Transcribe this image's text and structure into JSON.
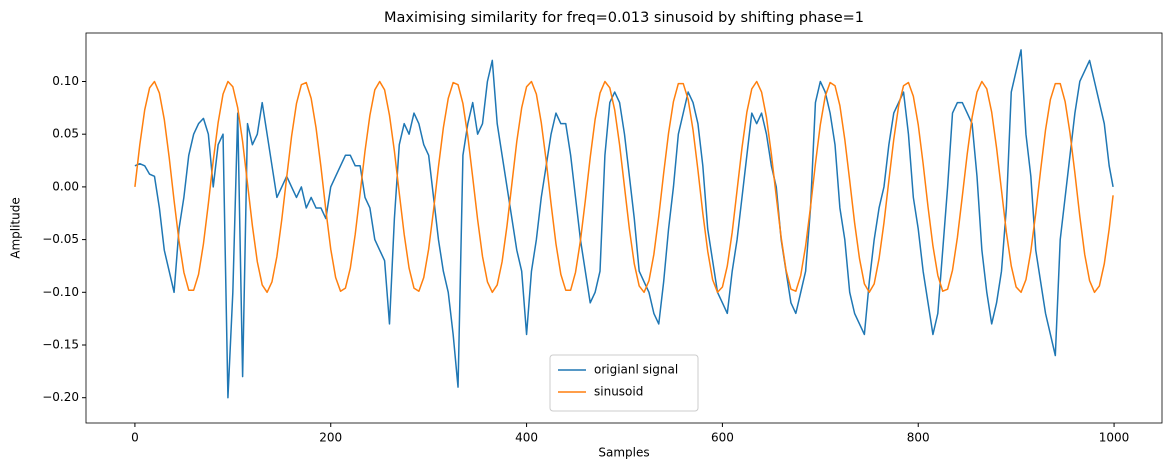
{
  "chart_data": {
    "type": "line",
    "title": "Maximising similarity for freq=0.013 sinusoid by shifting phase=1",
    "x_label": "Samples",
    "y_label": "Amplitude",
    "x": [
      0,
      5,
      10,
      15,
      20,
      25,
      30,
      35,
      40,
      45,
      50,
      55,
      60,
      65,
      70,
      75,
      80,
      85,
      90,
      95,
      100,
      105,
      110,
      115,
      120,
      125,
      130,
      135,
      140,
      145,
      150,
      155,
      160,
      165,
      170,
      175,
      180,
      185,
      190,
      195,
      200,
      205,
      210,
      215,
      220,
      225,
      230,
      235,
      240,
      245,
      250,
      255,
      260,
      265,
      270,
      275,
      280,
      285,
      290,
      295,
      300,
      305,
      310,
      315,
      320,
      325,
      330,
      335,
      340,
      345,
      350,
      355,
      360,
      365,
      370,
      375,
      380,
      385,
      390,
      395,
      400,
      405,
      410,
      415,
      420,
      425,
      430,
      435,
      440,
      445,
      450,
      455,
      460,
      465,
      470,
      475,
      480,
      485,
      490,
      495,
      500,
      505,
      510,
      515,
      520,
      525,
      530,
      535,
      540,
      545,
      550,
      555,
      560,
      565,
      570,
      575,
      580,
      585,
      590,
      595,
      600,
      605,
      610,
      615,
      620,
      625,
      630,
      635,
      640,
      645,
      650,
      655,
      660,
      665,
      670,
      675,
      680,
      685,
      690,
      695,
      700,
      705,
      710,
      715,
      720,
      725,
      730,
      735,
      740,
      745,
      750,
      755,
      760,
      765,
      770,
      775,
      780,
      785,
      790,
      795,
      800,
      805,
      810,
      815,
      820,
      825,
      830,
      835,
      840,
      845,
      850,
      855,
      860,
      865,
      870,
      875,
      880,
      885,
      890,
      895,
      900,
      905,
      910,
      915,
      920,
      925,
      930,
      935,
      940,
      945,
      950,
      955,
      960,
      965,
      970,
      975,
      980,
      985,
      990,
      995,
      999
    ],
    "series": [
      {
        "name": "origianl signal",
        "color": "#1f77b4",
        "values": [
          0.02,
          0.022,
          0.02,
          0.012,
          0.01,
          -0.02,
          -0.06,
          -0.08,
          -0.1,
          -0.04,
          -0.01,
          0.03,
          0.05,
          0.06,
          0.065,
          0.05,
          0.0,
          0.04,
          0.05,
          -0.2,
          -0.1,
          0.07,
          -0.18,
          0.06,
          0.04,
          0.05,
          0.08,
          0.05,
          0.02,
          -0.01,
          0.0,
          0.01,
          0.0,
          -0.01,
          0.0,
          -0.02,
          -0.01,
          -0.02,
          -0.02,
          -0.03,
          0.0,
          0.01,
          0.02,
          0.03,
          0.03,
          0.02,
          0.02,
          -0.01,
          -0.02,
          -0.05,
          -0.06,
          -0.07,
          -0.13,
          -0.03,
          0.04,
          0.06,
          0.05,
          0.07,
          0.06,
          0.04,
          0.03,
          -0.01,
          -0.05,
          -0.08,
          -0.1,
          -0.14,
          -0.19,
          0.03,
          0.06,
          0.08,
          0.05,
          0.06,
          0.1,
          0.12,
          0.06,
          0.03,
          0.0,
          -0.03,
          -0.06,
          -0.08,
          -0.14,
          -0.08,
          -0.05,
          -0.01,
          0.02,
          0.05,
          0.07,
          0.06,
          0.06,
          0.03,
          -0.01,
          -0.05,
          -0.08,
          -0.11,
          -0.1,
          -0.08,
          0.03,
          0.08,
          0.09,
          0.08,
          0.05,
          0.01,
          -0.03,
          -0.08,
          -0.09,
          -0.1,
          -0.12,
          -0.13,
          -0.09,
          -0.04,
          0.0,
          0.05,
          0.07,
          0.09,
          0.08,
          0.06,
          0.02,
          -0.04,
          -0.07,
          -0.1,
          -0.11,
          -0.12,
          -0.08,
          -0.05,
          -0.01,
          0.03,
          0.07,
          0.06,
          0.07,
          0.05,
          0.02,
          0.0,
          -0.05,
          -0.08,
          -0.11,
          -0.12,
          -0.1,
          -0.08,
          -0.02,
          0.08,
          0.1,
          0.09,
          0.07,
          0.04,
          -0.02,
          -0.05,
          -0.1,
          -0.12,
          -0.13,
          -0.14,
          -0.09,
          -0.05,
          -0.02,
          0.0,
          0.04,
          0.07,
          0.08,
          0.09,
          0.05,
          -0.01,
          -0.04,
          -0.08,
          -0.11,
          -0.14,
          -0.12,
          -0.06,
          0.0,
          0.07,
          0.08,
          0.08,
          0.07,
          0.06,
          0.01,
          -0.06,
          -0.1,
          -0.13,
          -0.11,
          -0.08,
          -0.02,
          0.09,
          0.11,
          0.13,
          0.05,
          0.01,
          -0.06,
          -0.09,
          -0.12,
          -0.14,
          -0.16,
          -0.05,
          -0.01,
          0.03,
          0.07,
          0.1,
          0.11,
          0.12,
          0.1,
          0.08,
          0.06,
          0.02,
          0
        ]
      },
      {
        "name": "sinusoid",
        "color": "#ff7f0e",
        "values": [
          0,
          0.04,
          0.073,
          0.094,
          0.1,
          0.089,
          0.064,
          0.028,
          -0.013,
          -0.051,
          -0.081,
          -0.098,
          -0.098,
          -0.083,
          -0.054,
          -0.016,
          0.025,
          0.061,
          0.088,
          0.1,
          0.095,
          0.075,
          0.043,
          0.003,
          -0.037,
          -0.071,
          -0.093,
          -0.1,
          -0.09,
          -0.066,
          -0.031,
          0.009,
          0.048,
          0.079,
          0.097,
          0.099,
          0.084,
          0.056,
          0.019,
          -0.022,
          -0.059,
          -0.086,
          -0.099,
          -0.096,
          -0.077,
          -0.045,
          -0.006,
          0.034,
          0.068,
          0.092,
          0.1,
          0.092,
          0.068,
          0.034,
          -0.006,
          -0.045,
          -0.077,
          -0.096,
          -0.099,
          -0.086,
          -0.059,
          -0.022,
          0.019,
          0.056,
          0.084,
          0.099,
          0.097,
          0.079,
          0.048,
          0.009,
          -0.031,
          -0.066,
          -0.09,
          -0.1,
          -0.093,
          -0.071,
          -0.037,
          0.003,
          0.043,
          0.075,
          0.095,
          0.1,
          0.088,
          0.061,
          0.025,
          -0.016,
          -0.054,
          -0.083,
          -0.098,
          -0.098,
          -0.081,
          -0.051,
          -0.013,
          0.028,
          0.064,
          0.089,
          0.1,
          0.094,
          0.073,
          0.04,
          0,
          -0.04,
          -0.073,
          -0.094,
          -0.1,
          -0.089,
          -0.064,
          -0.028,
          0.013,
          0.051,
          0.081,
          0.098,
          0.098,
          0.083,
          0.054,
          0.016,
          -0.025,
          -0.061,
          -0.088,
          -0.1,
          -0.095,
          -0.075,
          -0.043,
          -0.003,
          0.037,
          0.071,
          0.093,
          0.1,
          0.09,
          0.066,
          0.031,
          -0.009,
          -0.048,
          -0.079,
          -0.097,
          -0.099,
          -0.084,
          -0.056,
          -0.019,
          0.022,
          0.059,
          0.086,
          0.099,
          0.096,
          0.077,
          0.045,
          0.006,
          -0.034,
          -0.068,
          -0.092,
          -0.1,
          -0.092,
          -0.068,
          -0.034,
          0.006,
          0.045,
          0.077,
          0.096,
          0.099,
          0.086,
          0.059,
          0.022,
          -0.019,
          -0.056,
          -0.084,
          -0.099,
          -0.097,
          -0.079,
          -0.048,
          -0.009,
          0.031,
          0.066,
          0.09,
          0.1,
          0.093,
          0.071,
          0.037,
          -0.003,
          -0.043,
          -0.075,
          -0.095,
          -0.1,
          -0.088,
          -0.061,
          -0.025,
          0.016,
          0.054,
          0.083,
          0.098,
          0.098,
          0.081,
          0.051,
          0.013,
          -0.028,
          -0.064,
          -0.089,
          -0.1,
          -0.094,
          -0.073,
          -0.04,
          -0.008
        ]
      }
    ],
    "xlim": [
      -49.95,
      1048.95
    ],
    "ylim": [
      -0.224,
      0.146
    ],
    "xticks": [
      0,
      200,
      400,
      600,
      800,
      1000
    ],
    "yticks": [
      {
        "value": -0.2,
        "label": "−0.20"
      },
      {
        "value": -0.15,
        "label": "−0.15"
      },
      {
        "value": -0.1,
        "label": "−0.10"
      },
      {
        "value": -0.05,
        "label": "−0.05"
      },
      {
        "value": 0,
        "label": "0.00"
      },
      {
        "value": 0.05,
        "label": "0.05"
      },
      {
        "value": 0.1,
        "label": "0.10"
      }
    ],
    "grid": false,
    "legend": "lower center"
  }
}
